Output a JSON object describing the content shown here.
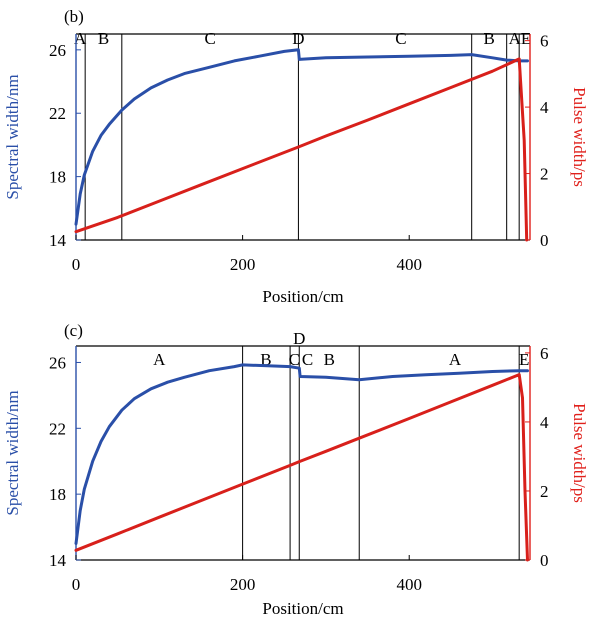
{
  "colors": {
    "left_axis": "#2a4fa8",
    "right_axis": "#e0201b",
    "spectral_line": "#2a4fa8",
    "pulse_line": "#d8201b",
    "frame": "#000000"
  },
  "chart_data": [
    {
      "type": "line",
      "panel_label": "(b)",
      "xlabel": "Position/cm",
      "ylabel_left": "Spectral width/nm",
      "ylabel_right": "Pulse width/ps",
      "xlim": [
        0,
        545
      ],
      "ylim_left": [
        14,
        27
      ],
      "ylim_right": [
        0,
        6.2
      ],
      "x_ticks": [
        0,
        200,
        400
      ],
      "y_ticks_left": [
        14,
        18,
        22,
        26
      ],
      "y_ticks_right": [
        0,
        2,
        4,
        6
      ],
      "grid": false,
      "region_boundaries": [
        11,
        55,
        267,
        475,
        517,
        532
      ],
      "region_labels": [
        {
          "text": "A",
          "x": 5
        },
        {
          "text": "B",
          "x": 33
        },
        {
          "text": "C",
          "x": 161
        },
        {
          "text": "D",
          "x": 267
        },
        {
          "text": "C",
          "x": 390
        },
        {
          "text": "B",
          "x": 496
        },
        {
          "text": "AE",
          "x": 533
        }
      ],
      "series": [
        {
          "axis": "left",
          "x": [
            0,
            5,
            10,
            20,
            30,
            40,
            55,
            70,
            90,
            110,
            130,
            160,
            190,
            220,
            250,
            267,
            268,
            300,
            350,
            400,
            450,
            475,
            500,
            517,
            532,
            540,
            542
          ],
          "y": [
            15.0,
            16.9,
            18.1,
            19.6,
            20.6,
            21.3,
            22.2,
            22.9,
            23.6,
            24.1,
            24.5,
            24.9,
            25.3,
            25.6,
            25.9,
            26.0,
            25.4,
            25.5,
            25.55,
            25.6,
            25.65,
            25.7,
            25.5,
            25.35,
            25.3,
            25.3,
            25.3
          ]
        },
        {
          "axis": "right",
          "x": [
            0,
            50,
            100,
            150,
            200,
            267,
            300,
            350,
            400,
            450,
            500,
            532,
            538,
            541
          ],
          "y": [
            0.25,
            0.68,
            1.17,
            1.66,
            2.15,
            2.8,
            3.13,
            3.61,
            4.1,
            4.59,
            5.08,
            5.45,
            3.0,
            0.0
          ]
        }
      ]
    },
    {
      "type": "line",
      "panel_label": "(c)",
      "xlabel": "Position/cm",
      "ylabel_left": "Spectral width/nm",
      "ylabel_right": "Pulse width/ps",
      "xlim": [
        0,
        545
      ],
      "ylim_left": [
        14,
        27
      ],
      "ylim_right": [
        0,
        6.2
      ],
      "x_ticks": [
        0,
        200,
        400
      ],
      "y_ticks_left": [
        14,
        18,
        22,
        26
      ],
      "y_ticks_right": [
        0,
        2,
        4,
        6
      ],
      "grid": false,
      "region_boundaries": [
        200,
        257,
        268,
        340,
        532
      ],
      "region_labels": [
        {
          "text": "A",
          "x": 100
        },
        {
          "text": "B",
          "x": 228
        },
        {
          "text": "C",
          "x": 262
        },
        {
          "text": "C",
          "x": 278
        },
        {
          "text": "D",
          "x": 268
        },
        {
          "text": "B",
          "x": 304
        },
        {
          "text": "A",
          "x": 455
        },
        {
          "text": "E",
          "x": 538
        }
      ],
      "series": [
        {
          "axis": "left",
          "x": [
            0,
            5,
            10,
            20,
            30,
            40,
            55,
            70,
            90,
            110,
            130,
            160,
            190,
            200,
            230,
            257,
            268,
            269,
            300,
            340,
            380,
            420,
            460,
            500,
            532,
            540,
            542
          ],
          "y": [
            15.0,
            17.0,
            18.3,
            20.0,
            21.2,
            22.1,
            23.1,
            23.8,
            24.4,
            24.8,
            25.1,
            25.5,
            25.75,
            25.85,
            25.8,
            25.75,
            25.65,
            25.15,
            25.1,
            24.95,
            25.15,
            25.25,
            25.35,
            25.45,
            25.5,
            25.5,
            25.5
          ]
        },
        {
          "axis": "right",
          "x": [
            0,
            50,
            100,
            150,
            200,
            257,
            268,
            300,
            340,
            400,
            450,
            500,
            532,
            536,
            539,
            542
          ],
          "y": [
            0.28,
            0.76,
            1.24,
            1.72,
            2.2,
            2.74,
            2.85,
            3.15,
            3.53,
            4.1,
            4.58,
            5.06,
            5.37,
            4.7,
            2.0,
            0.0
          ]
        }
      ]
    }
  ]
}
